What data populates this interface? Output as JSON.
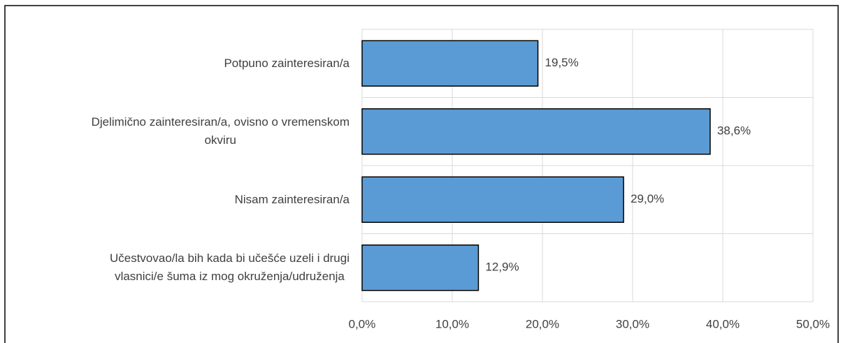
{
  "chart_data": {
    "type": "barh",
    "categories": [
      "Potpuno zainteresiran/a",
      "Djelimično zainteresiran/a, ovisno o vremenskom\nokviru",
      "Nisam zainteresiran/a",
      "Učestvovao/la bih kada bi učešće uzeli i drugi\nvlasnici/e šuma iz mog okruženja/udruženja"
    ],
    "values": [
      19.5,
      38.6,
      29.0,
      12.9
    ],
    "value_labels": [
      "19,5%",
      "38,6%",
      "29,0%",
      "12,9%"
    ],
    "color": "#5b9bd5",
    "xlim": [
      0,
      50
    ],
    "xticks": [
      {
        "value": 0,
        "label": "0,0%"
      },
      {
        "value": 10,
        "label": "10,0%"
      },
      {
        "value": 20,
        "label": "20,0%"
      },
      {
        "value": 30,
        "label": "30,0%"
      },
      {
        "value": 40,
        "label": "40,0%"
      },
      {
        "value": 50,
        "label": "50,0%"
      }
    ],
    "grid": true
  }
}
